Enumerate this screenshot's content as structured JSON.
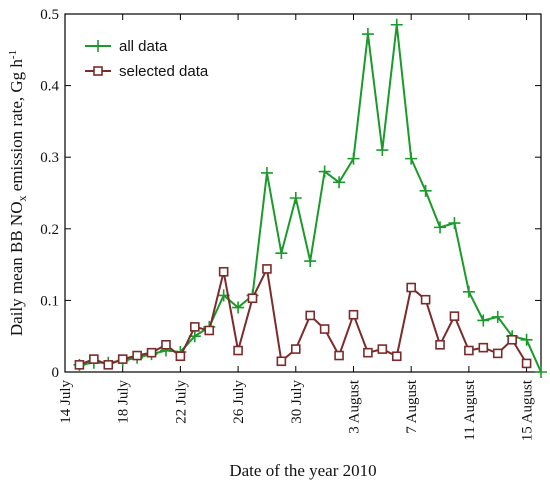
{
  "chart_data": {
    "type": "line",
    "ylabel": [
      "Daily mean BB NO",
      "x",
      " emission rate, Gg  h",
      "-1"
    ],
    "xlabel": "Date of the year 2010",
    "x": [
      15,
      16,
      17,
      18,
      19,
      20,
      21,
      22,
      23,
      24,
      25,
      26,
      27,
      28,
      29,
      30,
      31,
      32,
      33,
      34,
      35,
      36,
      37,
      38,
      39,
      40,
      41,
      42,
      43,
      44,
      45,
      46,
      47
    ],
    "xlim": [
      14,
      47
    ],
    "xticks": [
      {
        "value": 14,
        "label": "14 July"
      },
      {
        "value": 18,
        "label": "18 July"
      },
      {
        "value": 22,
        "label": "22 July"
      },
      {
        "value": 26,
        "label": "26 July"
      },
      {
        "value": 30,
        "label": "30 July"
      },
      {
        "value": 34,
        "label": "3 August"
      },
      {
        "value": 38,
        "label": "7 August"
      },
      {
        "value": 42,
        "label": "11 August"
      },
      {
        "value": 46,
        "label": "15 August"
      }
    ],
    "ylim": [
      0,
      0.5
    ],
    "yticks": [
      0,
      0.1,
      0.2,
      0.3,
      0.4,
      0.5
    ],
    "legend": "upper left",
    "series": [
      {
        "name": "all data",
        "color": "#1a9a2a",
        "marker": "plus",
        "values": [
          0.01,
          0.013,
          0.013,
          0.016,
          0.02,
          0.025,
          0.03,
          0.028,
          0.05,
          0.063,
          0.107,
          0.09,
          0.107,
          0.278,
          0.166,
          0.243,
          0.155,
          0.28,
          0.265,
          0.298,
          0.472,
          0.31,
          0.485,
          0.298,
          0.253,
          0.202,
          0.208,
          0.112,
          0.072,
          0.077,
          0.05,
          0.045,
          0.0
        ]
      },
      {
        "name": "selected data",
        "color": "#7b2b2b",
        "marker": "square",
        "values": [
          0.01,
          0.018,
          0.01,
          0.018,
          0.023,
          0.027,
          0.038,
          0.022,
          0.063,
          0.058,
          0.14,
          0.03,
          0.103,
          0.144,
          0.015,
          0.032,
          0.079,
          0.06,
          0.023,
          0.08,
          0.027,
          0.032,
          0.022,
          0.118,
          0.101,
          0.038,
          0.078,
          0.03,
          0.034,
          0.026,
          0.045,
          0.012,
          null
        ]
      }
    ]
  }
}
